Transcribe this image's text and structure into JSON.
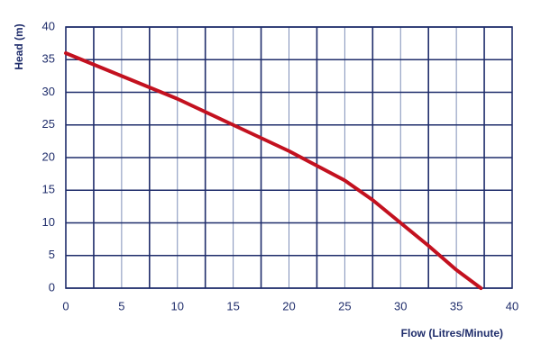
{
  "chart_data": {
    "type": "line",
    "x_label": "Flow (Litres/Minute)",
    "y_label": "Head (m)",
    "x": [
      0,
      5,
      10,
      15,
      20,
      25,
      27.5,
      30,
      32.5,
      35,
      37.2
    ],
    "series": [
      {
        "color": "#c3111f",
        "values": [
          36,
          32.5,
          29,
          25,
          21,
          16.5,
          13.5,
          10,
          6.5,
          2.8,
          0
        ]
      }
    ],
    "xlim": [
      0,
      40
    ],
    "xticks": [
      0,
      5,
      10,
      15,
      20,
      25,
      30,
      35,
      40
    ],
    "ylim": [
      0,
      40
    ],
    "yticks": [
      0,
      5,
      10,
      15,
      20,
      25,
      30,
      35,
      40
    ],
    "grid": true
  }
}
